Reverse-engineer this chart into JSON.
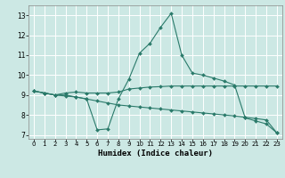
{
  "xlabel": "Humidex (Indice chaleur)",
  "bg_color": "#cce8e4",
  "line_color": "#2a7a6a",
  "grid_color": "#ffffff",
  "xlim": [
    -0.5,
    23.5
  ],
  "ylim": [
    6.8,
    13.5
  ],
  "xticks": [
    0,
    1,
    2,
    3,
    4,
    5,
    6,
    7,
    8,
    9,
    10,
    11,
    12,
    13,
    14,
    15,
    16,
    17,
    18,
    19,
    20,
    21,
    22,
    23
  ],
  "yticks": [
    7,
    8,
    9,
    10,
    11,
    12,
    13
  ],
  "line1_x": [
    0,
    1,
    2,
    3,
    4,
    5,
    6,
    7,
    8,
    9,
    10,
    11,
    12,
    13,
    14,
    15,
    16,
    17,
    18,
    19,
    20,
    21,
    22,
    23
  ],
  "line1_y": [
    9.2,
    9.1,
    9.0,
    9.1,
    9.15,
    9.1,
    9.1,
    9.1,
    9.15,
    9.3,
    9.35,
    9.4,
    9.42,
    9.45,
    9.45,
    9.45,
    9.45,
    9.45,
    9.45,
    9.45,
    9.45,
    9.45,
    9.45,
    9.45
  ],
  "line2_x": [
    0,
    1,
    2,
    3,
    4,
    5,
    6,
    7,
    8,
    9,
    10,
    11,
    12,
    13,
    14,
    15,
    16,
    17,
    18,
    19,
    20,
    21,
    22,
    23
  ],
  "line2_y": [
    9.2,
    9.1,
    9.0,
    9.0,
    8.9,
    8.8,
    7.25,
    7.3,
    8.8,
    9.8,
    11.1,
    11.6,
    12.4,
    13.1,
    11.0,
    10.1,
    10.0,
    9.85,
    9.7,
    9.5,
    7.85,
    7.7,
    7.55,
    7.1
  ],
  "line3_x": [
    0,
    1,
    2,
    3,
    4,
    5,
    6,
    7,
    8,
    9,
    10,
    11,
    12,
    13,
    14,
    15,
    16,
    17,
    18,
    19,
    20,
    21,
    22,
    23
  ],
  "line3_y": [
    9.2,
    9.1,
    9.0,
    8.95,
    8.9,
    8.8,
    8.7,
    8.6,
    8.5,
    8.45,
    8.4,
    8.35,
    8.3,
    8.25,
    8.2,
    8.15,
    8.1,
    8.05,
    8.0,
    7.95,
    7.88,
    7.82,
    7.75,
    7.1
  ]
}
